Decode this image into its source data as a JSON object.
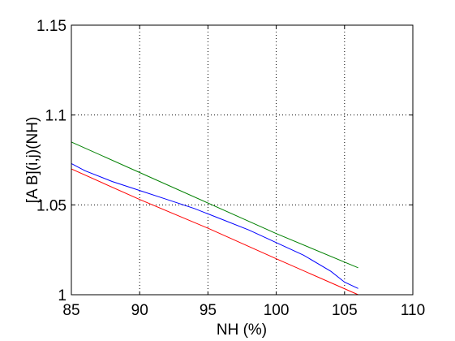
{
  "chart_data": {
    "type": "line",
    "title": "",
    "xlabel": "NH (%)",
    "ylabel": "[A B](i,j)(NH)",
    "xlim": [
      85,
      110
    ],
    "ylim": [
      1,
      1.15
    ],
    "x_ticks": [
      85,
      90,
      95,
      100,
      105,
      110
    ],
    "x_tick_labels": [
      "85",
      "90",
      "95",
      "100",
      "105",
      "110"
    ],
    "y_ticks": [
      1,
      1.05,
      1.1,
      1.15
    ],
    "y_tick_labels": [
      "1",
      "1.05",
      "1.1",
      "1.15"
    ],
    "grid": true,
    "series": [
      {
        "color": "#008000",
        "x": [
          85,
          90,
          95,
          100,
          106
        ],
        "y": [
          1.085,
          1.068,
          1.051,
          1.034,
          1.015
        ]
      },
      {
        "color": "#0000ff",
        "x": [
          85,
          86,
          88,
          90,
          92,
          94,
          96,
          98,
          100,
          102,
          104,
          105,
          106
        ],
        "y": [
          1.073,
          1.069,
          1.063,
          1.058,
          1.053,
          1.048,
          1.042,
          1.036,
          1.029,
          1.022,
          1.013,
          1.007,
          1.0035
        ]
      },
      {
        "color": "#ff0000",
        "x": [
          85,
          90,
          95,
          100,
          106
        ],
        "y": [
          1.07,
          1.053,
          1.037,
          1.02,
          1.0
        ]
      }
    ]
  }
}
